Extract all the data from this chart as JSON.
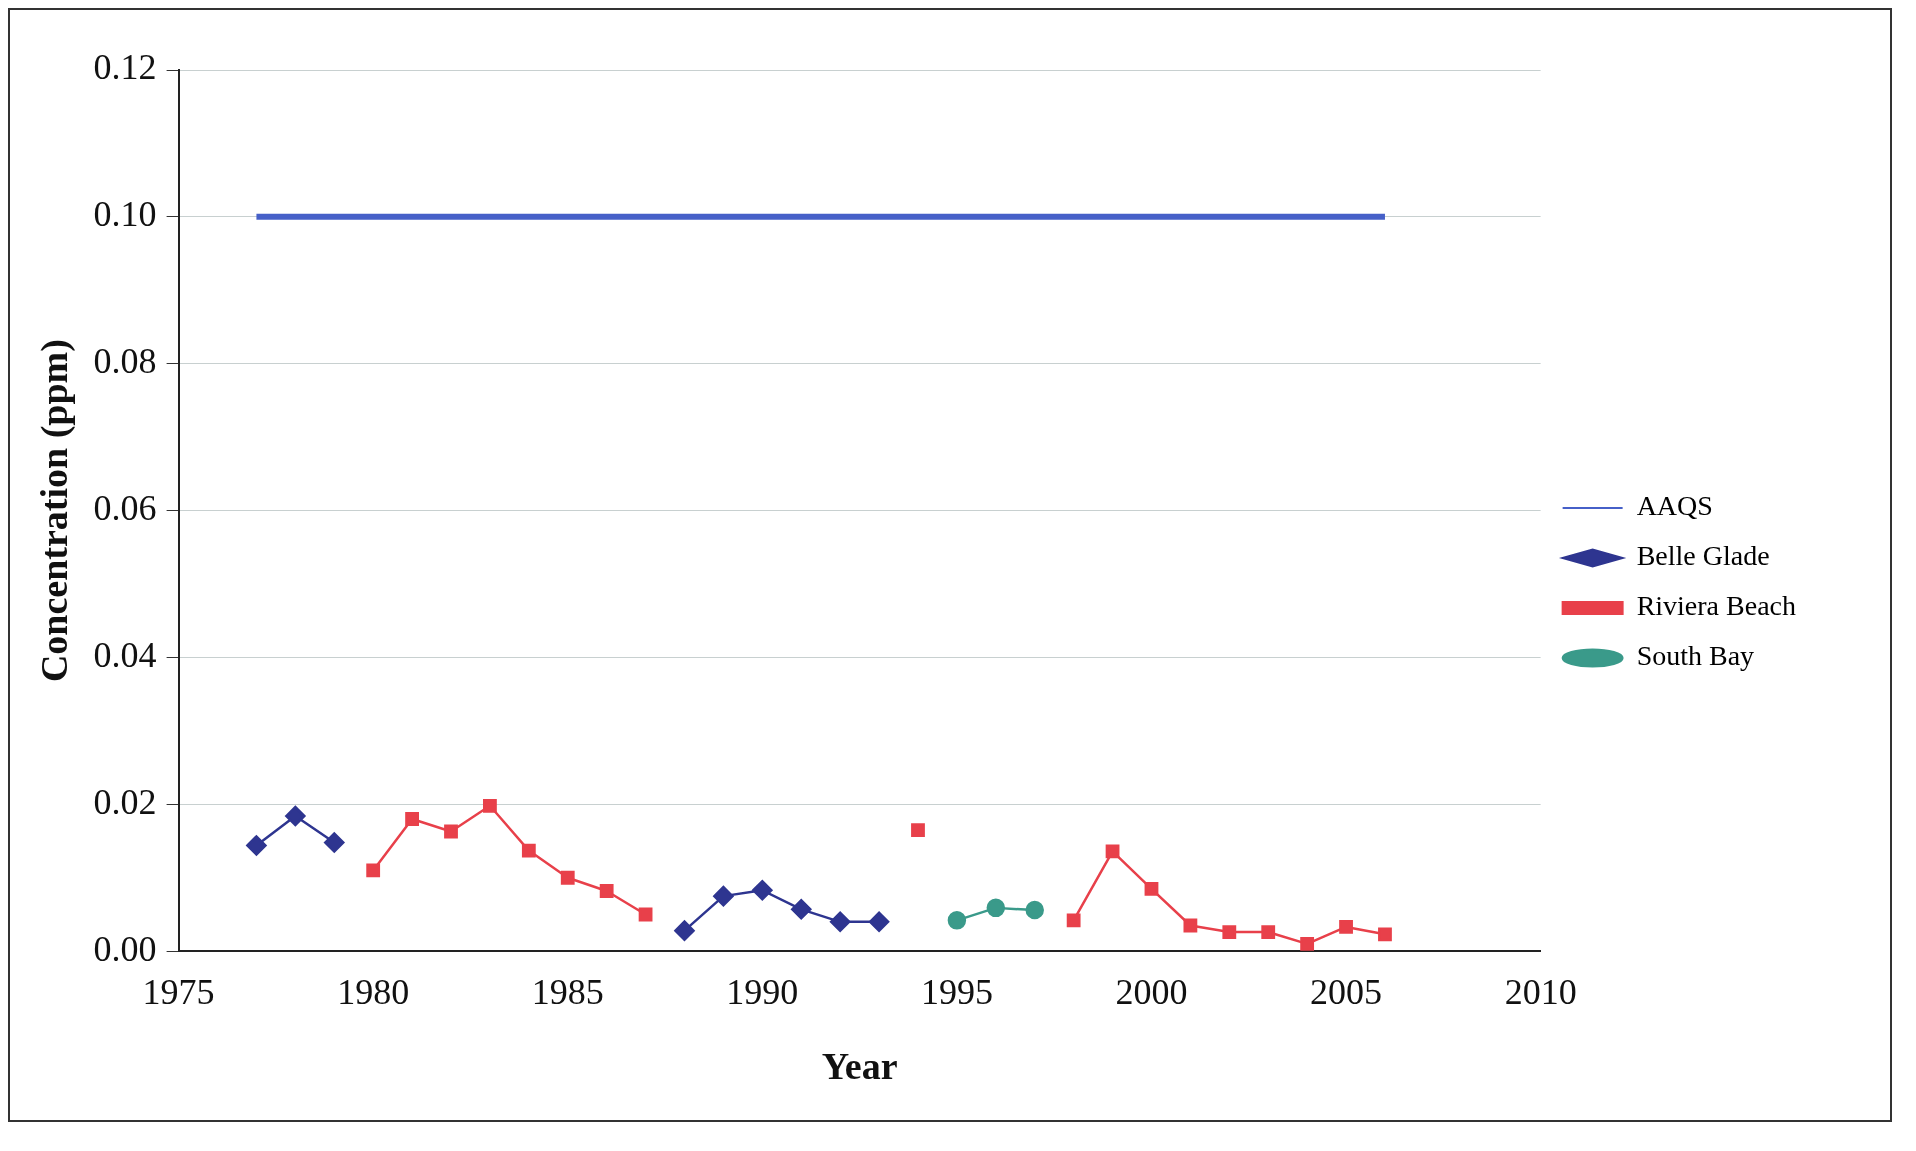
{
  "chart_data": {
    "type": "line",
    "xlabel": "Year",
    "ylabel": "Concentration (ppm)",
    "xlim": [
      1975,
      2010
    ],
    "xticks": [
      1975,
      1980,
      1985,
      1990,
      1995,
      2000,
      2005,
      2010
    ],
    "ylim": [
      0,
      0.12
    ],
    "yticks": [
      {
        "value": 0,
        "label": "0.00"
      },
      {
        "value": 0.02,
        "label": "0.02"
      },
      {
        "value": 0.04,
        "label": "0.04"
      },
      {
        "value": 0.06,
        "label": "0.06"
      },
      {
        "value": 0.08,
        "label": "0.08"
      },
      {
        "value": 0.1,
        "label": "0.10"
      },
      {
        "value": 0.12,
        "label": "0.12"
      }
    ],
    "grid": "y",
    "legend": "right",
    "series": [
      {
        "name": "AAQS",
        "color": "#4660c8",
        "marker": "none",
        "x": [
          1977,
          2006
        ],
        "values": [
          0.1,
          0.1
        ]
      },
      {
        "name": "Belle Glade",
        "color": "#2e3590",
        "marker": "diamond",
        "x": [
          1977,
          1978,
          1979,
          1980,
          1987,
          1988,
          1989,
          1990,
          1991,
          1992,
          1993
        ],
        "values": [
          0.0144,
          0.0184,
          0.0148,
          null,
          null,
          0.0028,
          0.0075,
          0.0083,
          0.0057,
          0.004,
          0.004
        ]
      },
      {
        "name": "Riviera Beach",
        "color": "#e8404a",
        "marker": "square",
        "x": [
          1980,
          1981,
          1982,
          1983,
          1984,
          1985,
          1986,
          1987,
          1988,
          1994,
          1995,
          1998,
          1999,
          2000,
          2001,
          2002,
          2003,
          2004,
          2005,
          2006
        ],
        "values": [
          0.011,
          0.018,
          0.0163,
          0.0198,
          0.0137,
          0.01,
          0.0082,
          0.005,
          null,
          0.0165,
          null,
          0.0042,
          0.0136,
          0.0085,
          0.0035,
          0.0026,
          0.0026,
          0.001,
          0.0033,
          0.0023
        ]
      },
      {
        "name": "South Bay",
        "color": "#3a9a8a",
        "marker": "circle",
        "x": [
          1995,
          1996,
          1997
        ],
        "values": [
          0.0042,
          0.0059,
          0.0056
        ]
      }
    ]
  }
}
